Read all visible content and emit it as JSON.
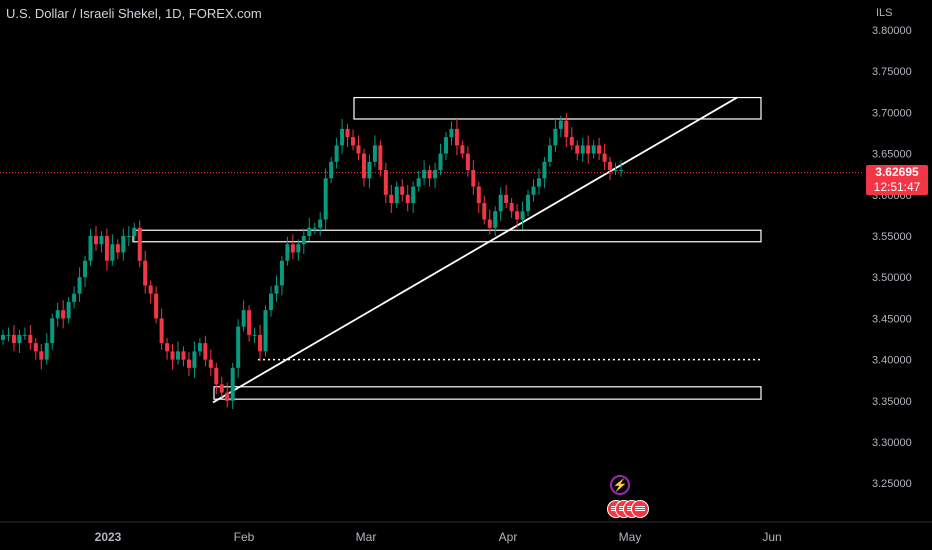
{
  "header": {
    "title": "U.S. Dollar / Israeli Shekel, 1D, FOREX.com",
    "currency": "ILS"
  },
  "price_tag": {
    "value": "3.62695",
    "countdown": "12:51:47"
  },
  "colors": {
    "up": "#089981",
    "down": "#f23645",
    "background": "#000000",
    "text": "#d1d4dc"
  },
  "icons": {
    "event": "lightning-icon",
    "calendar": "us-flag-icon"
  },
  "chart_data": {
    "type": "candlestick",
    "yticks": [
      "3.25000",
      "3.30000",
      "3.35000",
      "3.40000",
      "3.45000",
      "3.50000",
      "3.55000",
      "3.60000",
      "3.65000",
      "3.70000",
      "3.75000",
      "3.80000"
    ],
    "xticks": [
      "2023",
      "Feb",
      "Mar",
      "Apr",
      "May",
      "Jun"
    ],
    "ylim": [
      3.222,
      3.83
    ],
    "series_close": [
      3.43,
      3.43,
      3.42,
      3.43,
      3.43,
      3.42,
      3.41,
      3.4,
      3.42,
      3.45,
      3.46,
      3.45,
      3.47,
      3.48,
      3.5,
      3.52,
      3.55,
      3.54,
      3.55,
      3.52,
      3.54,
      3.53,
      3.55,
      3.55,
      3.56,
      3.52,
      3.49,
      3.48,
      3.45,
      3.42,
      3.41,
      3.4,
      3.41,
      3.4,
      3.39,
      3.41,
      3.42,
      3.4,
      3.39,
      3.37,
      3.36,
      3.35,
      3.39,
      3.44,
      3.46,
      3.43,
      3.43,
      3.41,
      3.46,
      3.48,
      3.49,
      3.52,
      3.54,
      3.53,
      3.54,
      3.55,
      3.56,
      3.56,
      3.57,
      3.62,
      3.64,
      3.66,
      3.68,
      3.67,
      3.66,
      3.65,
      3.62,
      3.64,
      3.66,
      3.63,
      3.6,
      3.59,
      3.61,
      3.6,
      3.59,
      3.61,
      3.62,
      3.63,
      3.62,
      3.63,
      3.65,
      3.67,
      3.68,
      3.66,
      3.65,
      3.63,
      3.61,
      3.59,
      3.57,
      3.56,
      3.58,
      3.6,
      3.59,
      3.58,
      3.57,
      3.58,
      3.6,
      3.61,
      3.62,
      3.64,
      3.66,
      3.68,
      3.69,
      3.67,
      3.66,
      3.65,
      3.66,
      3.65,
      3.66,
      3.65,
      3.64,
      3.63,
      3.63,
      3.63
    ],
    "last_price": 3.62695,
    "annotations": {
      "rectangles": [
        {
          "y_low": 3.692,
          "y_high": 3.718
        },
        {
          "y_low": 3.543,
          "y_high": 3.557
        },
        {
          "y_low": 3.352,
          "y_high": 3.367
        }
      ],
      "trendline": {
        "from_y": 3.348,
        "to_y": 3.718
      },
      "dotted_level": 3.4
    }
  }
}
